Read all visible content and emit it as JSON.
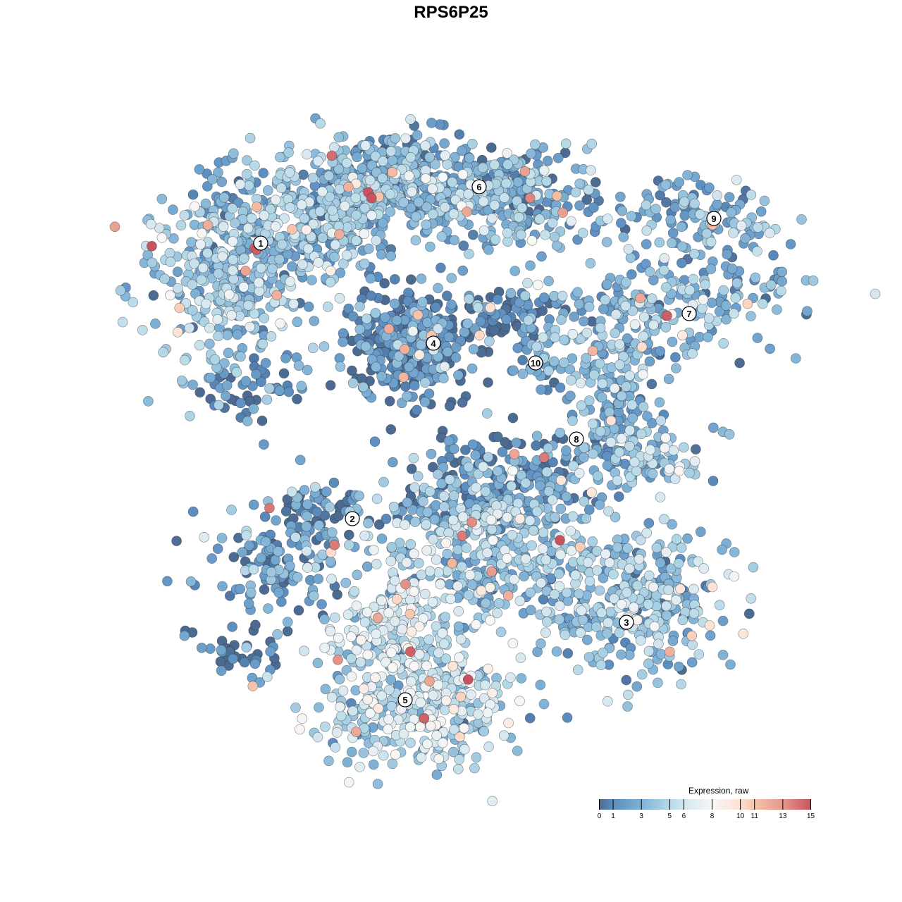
{
  "chart_data": {
    "type": "scatter",
    "title": "RPS6P25",
    "xlabel": "",
    "ylabel": "",
    "grid": false,
    "axes_visible": false,
    "xlim": [
      -9,
      10
    ],
    "ylim": [
      -9.5,
      9.5
    ],
    "legend": {
      "title": "Expression, raw",
      "placement": "bottom-right",
      "type": "colorbar",
      "range": [
        0,
        15
      ],
      "ticks": [
        0,
        1,
        3,
        5,
        6,
        8,
        10,
        11,
        13,
        15
      ],
      "color_stops": [
        {
          "value": 0,
          "color": "#4b6b92"
        },
        {
          "value": 1,
          "color": "#5b8dc0"
        },
        {
          "value": 3,
          "color": "#7fb2d6"
        },
        {
          "value": 5,
          "color": "#b6d9e8"
        },
        {
          "value": 6,
          "color": "#d3e6ef"
        },
        {
          "value": 8,
          "color": "#f7f7f7"
        },
        {
          "value": 10,
          "color": "#fde1d2"
        },
        {
          "value": 11,
          "color": "#f6c3aa"
        },
        {
          "value": 13,
          "color": "#e5978a"
        },
        {
          "value": 15,
          "color": "#c9525f"
        }
      ]
    },
    "point_stroke": "#333333",
    "clusters": [
      {
        "label": "1",
        "x": -5.4,
        "y": 5.9
      },
      {
        "label": "2",
        "x": -2.8,
        "y": -1.92
      },
      {
        "label": "3",
        "x": 4.98,
        "y": -4.86
      },
      {
        "label": "4",
        "x": -0.5,
        "y": 3.06
      },
      {
        "label": "5",
        "x": -1.3,
        "y": -7.06
      },
      {
        "label": "6",
        "x": 0.8,
        "y": 7.5
      },
      {
        "label": "7",
        "x": 6.76,
        "y": 3.9
      },
      {
        "label": "8",
        "x": 3.56,
        "y": 0.34
      },
      {
        "label": "9",
        "x": 7.46,
        "y": 6.6
      },
      {
        "label": "10",
        "x": 2.4,
        "y": 2.5
      }
    ],
    "point_groups": [
      {
        "cluster": "1",
        "x": -6.2,
        "y": 5.2,
        "sx": 1.2,
        "sy": 1.4,
        "n": 400,
        "expression_mean": 3.5
      },
      {
        "cluster": "1",
        "x": -3.6,
        "y": 6.8,
        "sx": 1.4,
        "sy": 0.9,
        "n": 300,
        "expression_mean": 3.2
      },
      {
        "cluster": "1",
        "x": -5.8,
        "y": 1.8,
        "sx": 0.8,
        "sy": 0.5,
        "n": 60,
        "expression_mean": 1.0
      },
      {
        "cluster": "6",
        "x": -1.6,
        "y": 7.8,
        "sx": 1.2,
        "sy": 0.6,
        "n": 300,
        "expression_mean": 3.0
      },
      {
        "cluster": "6",
        "x": 1.6,
        "y": 7.2,
        "sx": 1.4,
        "sy": 0.7,
        "n": 300,
        "expression_mean": 2.8
      },
      {
        "cluster": "4",
        "x": -1.2,
        "y": 3.0,
        "sx": 0.9,
        "sy": 0.8,
        "n": 350,
        "expression_mean": 0.8
      },
      {
        "cluster": "4",
        "x": 1.6,
        "y": 3.8,
        "sx": 1.0,
        "sy": 0.4,
        "n": 80,
        "expression_mean": 1.0
      },
      {
        "cluster": "10",
        "x": 2.5,
        "y": 2.6,
        "sx": 0.4,
        "sy": 0.5,
        "n": 40,
        "expression_mean": 2.5
      },
      {
        "cluster": "9",
        "x": 7.0,
        "y": 6.6,
        "sx": 1.1,
        "sy": 0.6,
        "n": 120,
        "expression_mean": 3.0
      },
      {
        "cluster": "7",
        "x": 6.2,
        "y": 4.2,
        "sx": 1.8,
        "sy": 0.7,
        "n": 200,
        "expression_mean": 3.0
      },
      {
        "cluster": "7",
        "x": 4.6,
        "y": 2.6,
        "sx": 0.8,
        "sy": 0.8,
        "n": 70,
        "expression_mean": 3.0
      },
      {
        "cluster": "8",
        "x": 4.4,
        "y": 1.2,
        "sx": 0.6,
        "sy": 1.0,
        "n": 100,
        "expression_mean": 2.5
      },
      {
        "cluster": "8",
        "x": 5.6,
        "y": -0.2,
        "sx": 0.9,
        "sy": 0.5,
        "n": 100,
        "expression_mean": 3.5
      },
      {
        "cluster": "8",
        "x": 1.8,
        "y": -0.2,
        "sx": 1.2,
        "sy": 0.5,
        "n": 80,
        "expression_mean": 1.5
      },
      {
        "cluster": "2",
        "x": -4.8,
        "y": -3.0,
        "sx": 1.0,
        "sy": 0.9,
        "n": 150,
        "expression_mean": 2.0
      },
      {
        "cluster": "2",
        "x": -3.6,
        "y": -1.6,
        "sx": 0.8,
        "sy": 0.3,
        "n": 50,
        "expression_mean": 1.5
      },
      {
        "cluster": "2",
        "x": -6.0,
        "y": -5.7,
        "sx": 0.8,
        "sy": 0.4,
        "n": 40,
        "expression_mean": 0.5
      },
      {
        "cluster": "3",
        "x": 5.2,
        "y": -4.2,
        "sx": 1.4,
        "sy": 1.0,
        "n": 350,
        "expression_mean": 3.5
      },
      {
        "cluster": "3",
        "x": 1.2,
        "y": -2.8,
        "sx": 1.4,
        "sy": 1.0,
        "n": 350,
        "expression_mean": 4.0
      },
      {
        "cluster": "3",
        "x": 1.0,
        "y": -1.2,
        "sx": 1.6,
        "sy": 0.5,
        "n": 150,
        "expression_mean": 1.5
      },
      {
        "cluster": "5",
        "x": -1.0,
        "y": -7.2,
        "sx": 1.4,
        "sy": 0.9,
        "n": 350,
        "expression_mean": 5.0
      },
      {
        "cluster": "5",
        "x": -1.6,
        "y": -4.8,
        "sx": 1.0,
        "sy": 0.9,
        "n": 200,
        "expression_mean": 5.5
      }
    ]
  }
}
